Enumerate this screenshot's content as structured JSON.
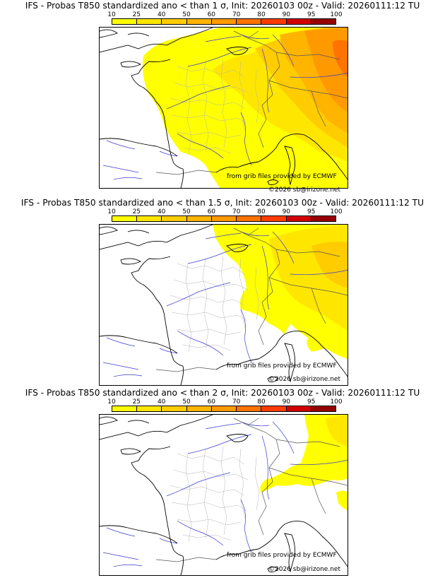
{
  "colorbar": {
    "labels": [
      "10",
      "25",
      "40",
      "50",
      "60",
      "70",
      "80",
      "90",
      "95",
      "100"
    ],
    "colors": [
      "#ffff00",
      "#ffe600",
      "#ffcc00",
      "#ffb400",
      "#ff9900",
      "#ff7300",
      "#ff3c00",
      "#d20000",
      "#960000",
      "#5a0000"
    ]
  },
  "panels": [
    {
      "title": "IFS - Probas T850  standardized ano < than 1 σ, Init: 20260103 00z - Valid: 20260111:12 TU",
      "grib_credit": "from grib files provided by ECMWF",
      "copyright": "©2026 sb@irizone.net"
    },
    {
      "title": "IFS - Probas T850  standardized ano < than 1.5 σ, Init: 20260103 00z - Valid: 20260111:12 TU",
      "grib_credit": "from grib files provided by ECMWF",
      "copyright": "©2026 sb@irizone.net"
    },
    {
      "title": "IFS - Probas T850  standardized ano < than 2 σ, Init: 20260103 00z - Valid: 20260111:12 TU",
      "grib_credit": "from grib files provided by ECMWF",
      "copyright": "©2026 sb@irizone.net"
    }
  ]
}
